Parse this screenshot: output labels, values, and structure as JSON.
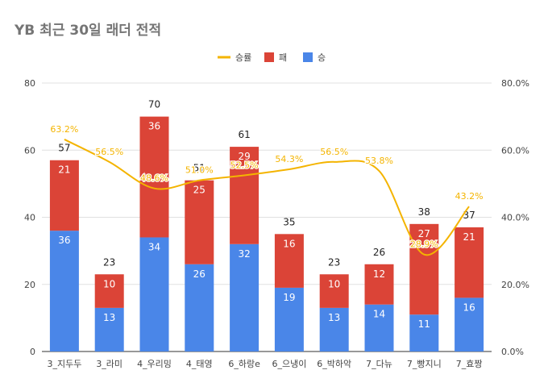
{
  "chart_data": {
    "type": "bar",
    "stacked": true,
    "title": "YB 최근 30일 래더 전적",
    "categories": [
      "3_지두두",
      "3_라미",
      "4_우리밍",
      "4_태영",
      "6_하랑e",
      "6_으냉이",
      "6_박하악",
      "7_다뉴",
      "7_빵지니",
      "7_효짱"
    ],
    "series": [
      {
        "name": "승",
        "axis": "left",
        "values": [
          36,
          13,
          34,
          26,
          32,
          19,
          13,
          14,
          11,
          16
        ]
      },
      {
        "name": "패",
        "axis": "left",
        "values": [
          21,
          10,
          36,
          25,
          29,
          16,
          10,
          12,
          27,
          21
        ]
      }
    ],
    "totals": [
      57,
      23,
      70,
      51,
      61,
      35,
      23,
      26,
      38,
      37
    ],
    "line_series": {
      "name": "승률",
      "axis": "right",
      "values": [
        63.2,
        56.5,
        48.6,
        51.0,
        52.5,
        54.3,
        56.5,
        53.8,
        28.9,
        43.2
      ],
      "labels": [
        "63.2%",
        "56.5%",
        "48.6%",
        "51.0%",
        "52.5%",
        "54.3%",
        "56.5%",
        "53.8%",
        "28.9%",
        "43.2%"
      ]
    },
    "legend": [
      {
        "name": "승률",
        "symbol": "line"
      },
      {
        "name": "패",
        "symbol": "square"
      },
      {
        "name": "승",
        "symbol": "square"
      }
    ],
    "legend_position": "top-center",
    "ylim": [
      0,
      80
    ],
    "y_ticks": [
      0,
      20,
      40,
      60,
      80
    ],
    "y2lim": [
      0,
      80
    ],
    "y2_ticks": [
      "0.0%",
      "20.0%",
      "40.0%",
      "60.0%",
      "80.0%"
    ],
    "gridlines": true,
    "colors": {
      "win": "#4a86e8",
      "loss": "#db4437",
      "rate": "#f4b400",
      "grid": "#e0e0e0",
      "text": "#444444",
      "title": "#757575"
    }
  }
}
